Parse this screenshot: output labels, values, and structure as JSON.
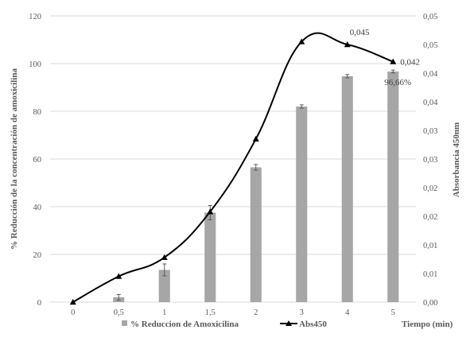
{
  "chart_data": {
    "type": "bar",
    "categories": [
      "0",
      "0,5",
      "1",
      "1,5",
      "2",
      "3",
      "4",
      "5"
    ],
    "series": [
      {
        "name": "% Reduccion de Amoxicilina",
        "type": "bar",
        "axis": "left",
        "color": "#a6a6a6",
        "values": [
          0,
          2,
          13.5,
          37.5,
          56.5,
          82,
          94.7,
          96.66
        ],
        "error": [
          0,
          1.2,
          2.5,
          3,
          1.2,
          0.7,
          0.7,
          0.6
        ]
      },
      {
        "name": "Abs450",
        "type": "line",
        "axis": "right",
        "color": "#000000",
        "marker": "triangle",
        "values": [
          0.0,
          0.0045,
          0.0078,
          0.0158,
          0.0285,
          0.0455,
          0.045,
          0.042
        ]
      }
    ],
    "y_left": {
      "label": "% Reducción de la concentración de amoxicilina",
      "ylim": [
        0,
        120
      ],
      "ticks": [
        "0",
        "20",
        "40",
        "60",
        "80",
        "100",
        "120"
      ]
    },
    "y_right": {
      "label": "Absorbancia 450nm",
      "ylim": [
        0,
        0.05
      ],
      "ticks": [
        "0,00",
        "0,01",
        "0,01",
        "0,02",
        "0,02",
        "0,03",
        "0,03",
        "0,04",
        "0,04",
        "0,05",
        "0,05"
      ]
    },
    "xlabel": "Tiempo (min)",
    "data_labels": [
      {
        "text": "0,045",
        "series": 1,
        "index": 6
      },
      {
        "text": "0,042",
        "series": 1,
        "index": 7
      },
      {
        "text": "96,66%",
        "series": 0,
        "index": 7
      }
    ],
    "grid": true,
    "legend_position": "bottom"
  }
}
